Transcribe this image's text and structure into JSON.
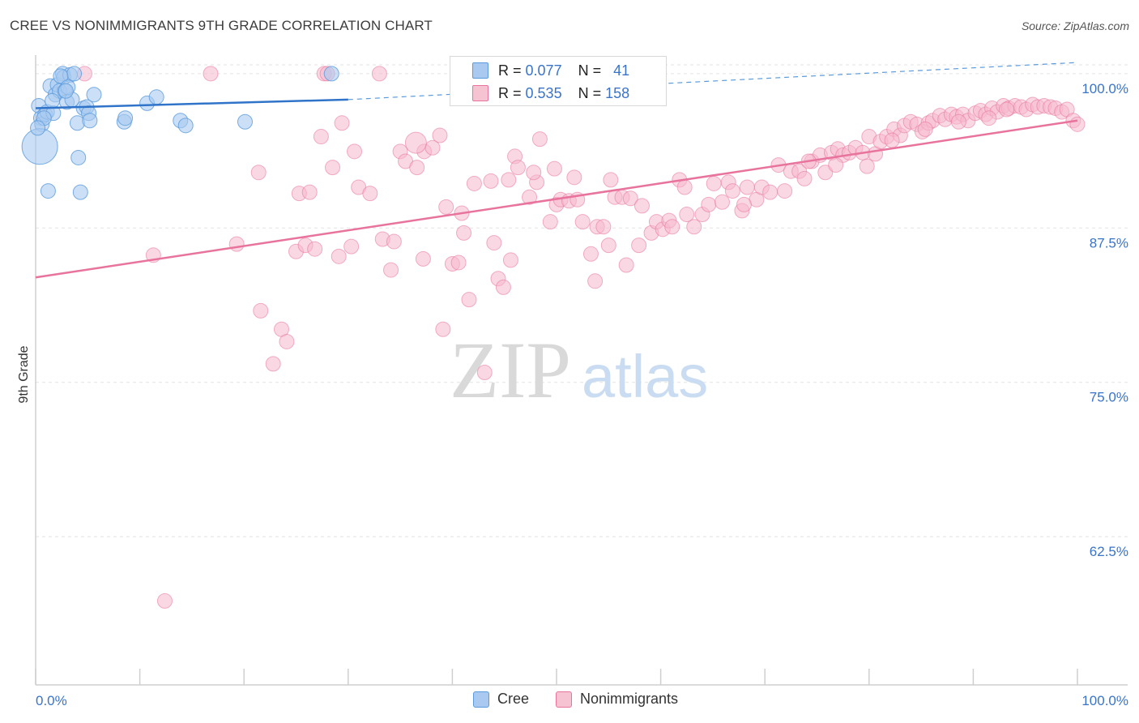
{
  "title": "CREE VS NONIMMIGRANTS 9TH GRADE CORRELATION CHART",
  "source": "Source: ZipAtlas.com",
  "watermark": {
    "zip": "ZIP",
    "atlas": "atlas"
  },
  "colors": {
    "cree": "#5b9bdc",
    "cree_fill": "#a9c9f0",
    "nonimmigrants": "#e8739c",
    "nonimmigrants_fill": "#f6b8cc",
    "tick_label": "#3a74c9"
  },
  "stats": [
    {
      "series": "Cree",
      "r_label": "R =",
      "r": "0.077",
      "n_label": "N =",
      "n": "41"
    },
    {
      "series": "Nonimmigrants",
      "r_label": "R =",
      "r": "0.535",
      "n_label": "N =",
      "n": "158"
    }
  ],
  "chart_data": {
    "type": "scatter",
    "title": "CREE VS NONIMMIGRANTS 9TH GRADE CORRELATION CHART",
    "xlabel": "",
    "ylabel": "9th Grade",
    "xlim": [
      0,
      100
    ],
    "ylim": [
      50.5,
      101.5
    ],
    "x_tick_labels": [
      "0.0%",
      "100.0%"
    ],
    "y_ticks": [
      62.5,
      75.0,
      87.5,
      100.0
    ],
    "y_tick_labels": [
      "62.5%",
      "75.0%",
      "87.5%",
      "100.0%"
    ],
    "grid": "horizontal dashed",
    "legend": "bottom-center",
    "series": [
      {
        "name": "Cree",
        "trend": {
          "x": [
            0,
            30
          ],
          "y": [
            97.2,
            97.9
          ],
          "extend_to": [
            100,
            100.9
          ]
        },
        "points": [
          [
            0.3,
            97.4
          ],
          [
            0.5,
            96.4
          ],
          [
            0.6,
            95.9
          ],
          [
            0.4,
            94.1
          ],
          [
            0.9,
            96.7
          ],
          [
            1.1,
            96.9
          ],
          [
            1.4,
            99.0
          ],
          [
            1.7,
            96.8
          ],
          [
            1.9,
            98.3
          ],
          [
            2.1,
            99.1
          ],
          [
            2.3,
            98.6
          ],
          [
            2.6,
            100.0
          ],
          [
            2.7,
            99.7
          ],
          [
            2.8,
            98.6
          ],
          [
            3.0,
            97.7
          ],
          [
            3.3,
            99.9
          ],
          [
            3.5,
            97.9
          ],
          [
            3.7,
            100.0
          ],
          [
            4.0,
            96.0
          ],
          [
            4.1,
            93.2
          ],
          [
            4.3,
            90.4
          ],
          [
            1.2,
            90.5
          ],
          [
            4.6,
            97.2
          ],
          [
            4.9,
            97.3
          ],
          [
            5.1,
            96.8
          ],
          [
            5.2,
            96.2
          ],
          [
            5.6,
            98.3
          ],
          [
            8.5,
            96.1
          ],
          [
            8.6,
            96.4
          ],
          [
            10.7,
            97.6
          ],
          [
            11.6,
            98.1
          ],
          [
            13.9,
            96.2
          ],
          [
            14.4,
            95.8
          ],
          [
            20.1,
            96.1
          ],
          [
            28.4,
            100.0
          ],
          [
            0.8,
            96.4
          ],
          [
            1.6,
            97.8
          ],
          [
            2.4,
            99.8
          ],
          [
            3.1,
            98.9
          ],
          [
            0.2,
            95.6
          ],
          [
            2.9,
            98.6
          ]
        ],
        "sizes": [
          9,
          9,
          9,
          22,
          9,
          9,
          9,
          9,
          9,
          9,
          9,
          9,
          9,
          9,
          9,
          9,
          9,
          9,
          9,
          9,
          9,
          9,
          9,
          9,
          9,
          9,
          9,
          9,
          9,
          9,
          9,
          9,
          9,
          9,
          9,
          9,
          9,
          9,
          9,
          9,
          9
        ]
      },
      {
        "name": "Nonimmigrants",
        "trend": {
          "x": [
            0,
            100
          ],
          "y": [
            83.5,
            96.2
          ]
        },
        "points": [
          [
            4.7,
            100.0
          ],
          [
            11.3,
            85.3
          ],
          [
            12.4,
            57.3
          ],
          [
            16.8,
            100.0
          ],
          [
            19.3,
            86.2
          ],
          [
            21.4,
            92.0
          ],
          [
            21.6,
            80.8
          ],
          [
            22.8,
            76.5
          ],
          [
            23.6,
            79.3
          ],
          [
            24.1,
            78.3
          ],
          [
            25.0,
            85.6
          ],
          [
            25.3,
            90.3
          ],
          [
            25.9,
            86.1
          ],
          [
            26.3,
            90.4
          ],
          [
            26.8,
            85.8
          ],
          [
            27.4,
            94.9
          ],
          [
            27.7,
            100.0
          ],
          [
            28.0,
            100.0
          ],
          [
            28.5,
            92.4
          ],
          [
            29.1,
            85.2
          ],
          [
            29.4,
            96.0
          ],
          [
            30.3,
            86.0
          ],
          [
            30.6,
            93.7
          ],
          [
            31.0,
            90.8
          ],
          [
            32.1,
            90.3
          ],
          [
            33.0,
            100.0
          ],
          [
            33.3,
            86.6
          ],
          [
            34.1,
            84.1
          ],
          [
            34.4,
            86.4
          ],
          [
            35.0,
            93.7
          ],
          [
            35.5,
            92.9
          ],
          [
            36.6,
            92.4
          ],
          [
            37.3,
            93.7
          ],
          [
            38.1,
            94.0
          ],
          [
            38.8,
            95.0
          ],
          [
            39.1,
            79.3
          ],
          [
            40.0,
            84.6
          ],
          [
            40.6,
            84.7
          ],
          [
            40.9,
            88.7
          ],
          [
            41.1,
            87.1
          ],
          [
            41.6,
            81.7
          ],
          [
            42.1,
            91.1
          ],
          [
            43.1,
            75.8
          ],
          [
            43.7,
            91.3
          ],
          [
            44.0,
            86.3
          ],
          [
            44.4,
            83.4
          ],
          [
            44.9,
            82.7
          ],
          [
            45.4,
            91.4
          ],
          [
            46.0,
            93.3
          ],
          [
            46.3,
            92.4
          ],
          [
            47.4,
            90.0
          ],
          [
            48.1,
            91.2
          ],
          [
            48.4,
            94.7
          ],
          [
            49.4,
            88.0
          ],
          [
            50.0,
            89.4
          ],
          [
            50.4,
            89.8
          ],
          [
            51.2,
            89.7
          ],
          [
            51.7,
            91.6
          ],
          [
            52.5,
            88.0
          ],
          [
            53.3,
            85.4
          ],
          [
            53.7,
            83.2
          ],
          [
            53.9,
            87.6
          ],
          [
            54.5,
            87.6
          ],
          [
            55.0,
            86.1
          ],
          [
            55.6,
            90.0
          ],
          [
            56.3,
            90.0
          ],
          [
            56.7,
            84.5
          ],
          [
            57.1,
            89.9
          ],
          [
            57.9,
            86.1
          ],
          [
            59.1,
            87.1
          ],
          [
            59.6,
            88.0
          ],
          [
            60.2,
            87.4
          ],
          [
            60.8,
            88.1
          ],
          [
            61.1,
            87.6
          ],
          [
            61.8,
            91.4
          ],
          [
            62.3,
            90.8
          ],
          [
            63.2,
            87.6
          ],
          [
            64.0,
            88.6
          ],
          [
            64.6,
            89.4
          ],
          [
            65.1,
            91.1
          ],
          [
            65.9,
            89.6
          ],
          [
            66.5,
            91.2
          ],
          [
            66.9,
            90.5
          ],
          [
            67.8,
            88.9
          ],
          [
            68.3,
            90.8
          ],
          [
            69.2,
            89.8
          ],
          [
            69.7,
            90.8
          ],
          [
            70.5,
            90.4
          ],
          [
            71.3,
            92.6
          ],
          [
            71.9,
            90.5
          ],
          [
            72.5,
            92.1
          ],
          [
            73.3,
            92.1
          ],
          [
            73.8,
            91.5
          ],
          [
            74.5,
            92.9
          ],
          [
            75.3,
            93.4
          ],
          [
            75.8,
            92.0
          ],
          [
            76.4,
            93.6
          ],
          [
            77.0,
            93.9
          ],
          [
            77.5,
            93.4
          ],
          [
            78.1,
            93.6
          ],
          [
            78.7,
            94.0
          ],
          [
            79.4,
            93.6
          ],
          [
            80.0,
            94.9
          ],
          [
            80.6,
            93.5
          ],
          [
            81.1,
            94.5
          ],
          [
            81.7,
            94.9
          ],
          [
            82.4,
            95.5
          ],
          [
            83.0,
            95.0
          ],
          [
            83.4,
            95.8
          ],
          [
            84.0,
            96.1
          ],
          [
            84.6,
            95.9
          ],
          [
            85.1,
            95.3
          ],
          [
            85.7,
            96.0
          ],
          [
            86.1,
            96.2
          ],
          [
            86.8,
            96.6
          ],
          [
            87.3,
            96.3
          ],
          [
            87.9,
            96.7
          ],
          [
            88.4,
            96.5
          ],
          [
            89.0,
            96.7
          ],
          [
            89.5,
            96.2
          ],
          [
            90.2,
            96.8
          ],
          [
            90.7,
            97.0
          ],
          [
            91.2,
            96.7
          ],
          [
            91.8,
            97.2
          ],
          [
            92.3,
            96.9
          ],
          [
            92.9,
            97.4
          ],
          [
            93.4,
            97.2
          ],
          [
            94.0,
            97.4
          ],
          [
            94.6,
            97.3
          ],
          [
            95.1,
            97.1
          ],
          [
            95.7,
            97.5
          ],
          [
            96.2,
            97.3
          ],
          [
            96.8,
            97.4
          ],
          [
            97.4,
            97.3
          ],
          [
            97.9,
            97.2
          ],
          [
            98.5,
            96.9
          ],
          [
            99.0,
            97.1
          ],
          [
            99.6,
            96.2
          ],
          [
            100.0,
            95.9
          ],
          [
            36.5,
            94.4
          ],
          [
            37.2,
            85.0
          ],
          [
            39.4,
            89.2
          ],
          [
            45.6,
            84.9
          ],
          [
            47.8,
            92.0
          ],
          [
            49.8,
            92.3
          ],
          [
            52.0,
            89.8
          ],
          [
            55.2,
            91.4
          ],
          [
            58.2,
            89.3
          ],
          [
            62.5,
            88.6
          ],
          [
            68.0,
            89.4
          ],
          [
            74.2,
            92.9
          ],
          [
            76.8,
            92.6
          ],
          [
            79.8,
            92.5
          ],
          [
            82.2,
            94.6
          ],
          [
            85.4,
            95.5
          ],
          [
            88.6,
            96.1
          ],
          [
            91.5,
            96.4
          ],
          [
            93.2,
            97.1
          ],
          [
            96.0,
            96.9
          ],
          [
            97.6,
            97.1
          ],
          [
            99.2,
            96.5
          ]
        ],
        "sizes": [
          9,
          9,
          9,
          9,
          9,
          9,
          9,
          9,
          9,
          9,
          9,
          9,
          9,
          9,
          9,
          9,
          9,
          9,
          9,
          9,
          9,
          9,
          9,
          9,
          9,
          9,
          9,
          9,
          9,
          9,
          9,
          9,
          9,
          9,
          9,
          9,
          9,
          9,
          9,
          9,
          9,
          9,
          9,
          9,
          9,
          9,
          9,
          9,
          9,
          9,
          9,
          9,
          9,
          9,
          9,
          9,
          9,
          9,
          9,
          9,
          9,
          9,
          9,
          9,
          9,
          9,
          9,
          9,
          9,
          9,
          9,
          9,
          9,
          9,
          9,
          9,
          9,
          9,
          9,
          9,
          9,
          9,
          9,
          9,
          9,
          9,
          9,
          9,
          9,
          9,
          9,
          9,
          9,
          9,
          9,
          9,
          9,
          9,
          9,
          9,
          9,
          9,
          9,
          9,
          9,
          9,
          9,
          9,
          9,
          9,
          9,
          9,
          9,
          9,
          9,
          9,
          9,
          9,
          9,
          9,
          9,
          9,
          9,
          9,
          9,
          9,
          9,
          9,
          9,
          9,
          9,
          9,
          9,
          9,
          9,
          9,
          9,
          9,
          9,
          13,
          9,
          9,
          9,
          9,
          9,
          9,
          9,
          9,
          9,
          9,
          9,
          9,
          9,
          9,
          9,
          9,
          9,
          9
        ]
      }
    ]
  }
}
